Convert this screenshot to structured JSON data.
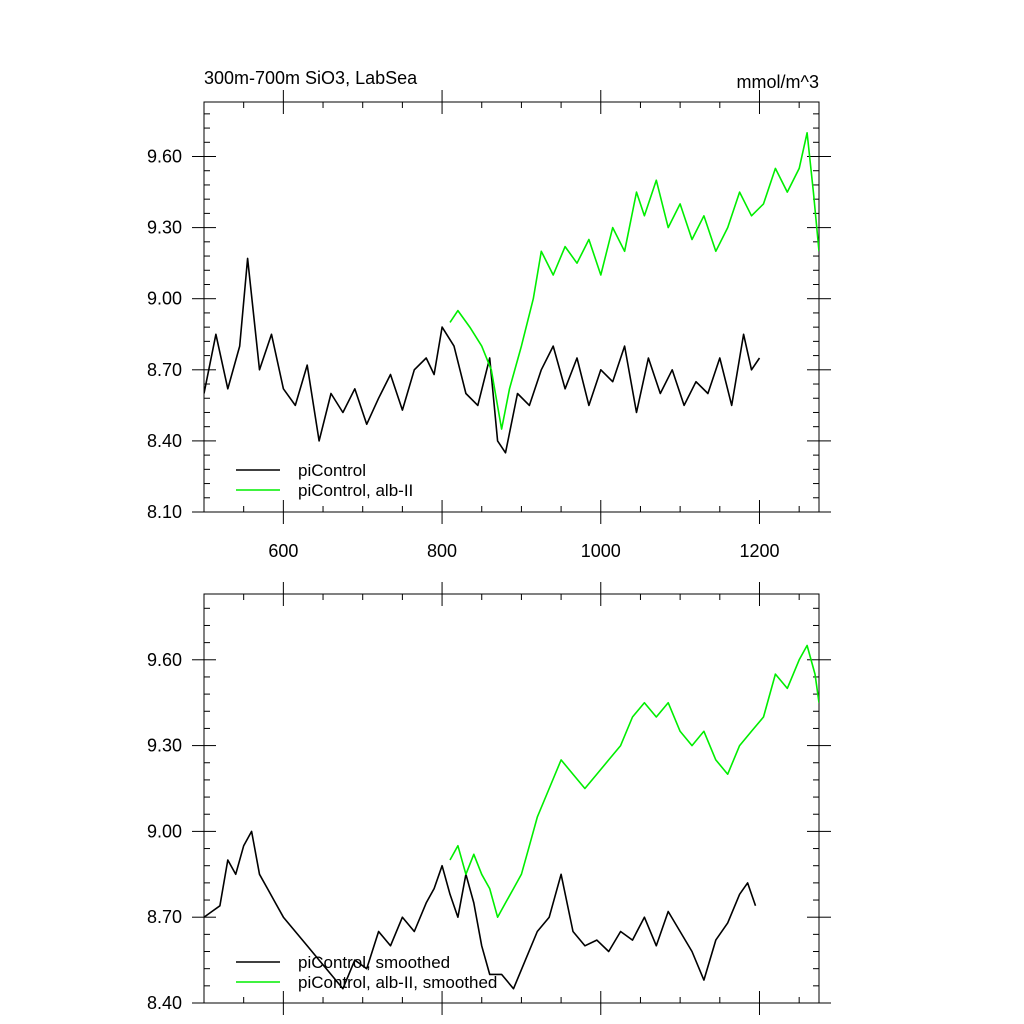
{
  "chart_data": [
    {
      "type": "line",
      "title": "300m-700m SiO3, LabSea",
      "units": "mmol/m^3",
      "xlim": [
        500,
        1275
      ],
      "ylim": [
        8.1,
        9.83
      ],
      "xticks": [
        600,
        800,
        1000,
        1200
      ],
      "xtick_labels": [
        "600",
        "800",
        "1000",
        "1200"
      ],
      "yticks": [
        8.1,
        8.4,
        8.7,
        9.0,
        9.3,
        9.6
      ],
      "ytick_labels": [
        "8.10",
        "8.40",
        "8.70",
        "9.00",
        "9.30",
        "9.60"
      ],
      "legend_position": "bottom-left",
      "series": [
        {
          "name": "piControl",
          "color": "#000000",
          "x": [
            500,
            515,
            530,
            545,
            555,
            570,
            585,
            600,
            615,
            630,
            645,
            660,
            675,
            690,
            705,
            720,
            735,
            750,
            765,
            780,
            790,
            800,
            815,
            830,
            845,
            860,
            870,
            880,
            895,
            910,
            925,
            940,
            955,
            970,
            985,
            1000,
            1015,
            1030,
            1045,
            1060,
            1075,
            1090,
            1105,
            1120,
            1135,
            1150,
            1165,
            1180,
            1190,
            1200
          ],
          "values": [
            8.6,
            8.85,
            8.62,
            8.8,
            9.17,
            8.7,
            8.85,
            8.62,
            8.55,
            8.72,
            8.4,
            8.6,
            8.52,
            8.62,
            8.47,
            8.58,
            8.68,
            8.53,
            8.7,
            8.75,
            8.68,
            8.88,
            8.8,
            8.6,
            8.55,
            8.75,
            8.4,
            8.35,
            8.6,
            8.55,
            8.7,
            8.8,
            8.62,
            8.75,
            8.55,
            8.7,
            8.65,
            8.8,
            8.52,
            8.75,
            8.6,
            8.7,
            8.55,
            8.65,
            8.6,
            8.75,
            8.55,
            8.85,
            8.7,
            8.75
          ]
        },
        {
          "name": "piControl, alb-II",
          "color": "#00ee00",
          "x": [
            810,
            820,
            835,
            850,
            862,
            875,
            885,
            900,
            915,
            925,
            940,
            955,
            970,
            985,
            1000,
            1015,
            1030,
            1045,
            1055,
            1070,
            1085,
            1100,
            1115,
            1130,
            1145,
            1160,
            1175,
            1190,
            1205,
            1220,
            1235,
            1250,
            1260,
            1268,
            1275
          ],
          "values": [
            8.9,
            8.95,
            8.88,
            8.8,
            8.7,
            8.45,
            8.62,
            8.8,
            9.0,
            9.2,
            9.1,
            9.22,
            9.15,
            9.25,
            9.1,
            9.3,
            9.2,
            9.45,
            9.35,
            9.5,
            9.3,
            9.4,
            9.25,
            9.35,
            9.2,
            9.3,
            9.45,
            9.35,
            9.4,
            9.55,
            9.45,
            9.55,
            9.7,
            9.45,
            9.2
          ]
        }
      ]
    },
    {
      "type": "line",
      "ylim": [
        8.4,
        9.83
      ],
      "yticks": [
        8.4,
        8.7,
        9.0,
        9.3,
        9.6
      ],
      "ytick_labels": [
        "8.40",
        "8.70",
        "9.00",
        "9.30",
        "9.60"
      ],
      "xlim": [
        500,
        1275
      ],
      "xticks": [
        600,
        800,
        1000,
        1200
      ],
      "legend_position": "bottom-left",
      "series": [
        {
          "name": "piControl, smoothed",
          "color": "#000000",
          "x": [
            500,
            510,
            520,
            530,
            540,
            550,
            560,
            570,
            580,
            590,
            600,
            615,
            630,
            645,
            660,
            675,
            690,
            705,
            720,
            735,
            750,
            765,
            780,
            790,
            800,
            810,
            820,
            830,
            840,
            850,
            860,
            875,
            890,
            905,
            920,
            935,
            950,
            965,
            980,
            995,
            1010,
            1025,
            1040,
            1055,
            1070,
            1085,
            1100,
            1115,
            1130,
            1145,
            1160,
            1175,
            1185,
            1195
          ],
          "values": [
            8.7,
            8.72,
            8.74,
            8.9,
            8.85,
            8.95,
            9.0,
            8.85,
            8.8,
            8.75,
            8.7,
            8.65,
            8.6,
            8.55,
            8.5,
            8.45,
            8.55,
            8.52,
            8.65,
            8.6,
            8.7,
            8.65,
            8.75,
            8.8,
            8.88,
            8.78,
            8.7,
            8.85,
            8.75,
            8.6,
            8.5,
            8.5,
            8.45,
            8.55,
            8.65,
            8.7,
            8.85,
            8.65,
            8.6,
            8.62,
            8.58,
            8.65,
            8.62,
            8.7,
            8.6,
            8.72,
            8.65,
            8.58,
            8.48,
            8.62,
            8.68,
            8.78,
            8.82,
            8.74
          ]
        },
        {
          "name": "piControl, alb-II, smoothed",
          "color": "#00ee00",
          "x": [
            810,
            820,
            830,
            840,
            850,
            860,
            870,
            880,
            890,
            900,
            910,
            920,
            935,
            950,
            965,
            980,
            995,
            1010,
            1025,
            1040,
            1055,
            1070,
            1085,
            1100,
            1115,
            1130,
            1145,
            1160,
            1175,
            1190,
            1205,
            1220,
            1235,
            1250,
            1260,
            1270,
            1275
          ],
          "values": [
            8.9,
            8.95,
            8.85,
            8.92,
            8.85,
            8.8,
            8.7,
            8.75,
            8.8,
            8.85,
            8.95,
            9.05,
            9.15,
            9.25,
            9.2,
            9.15,
            9.2,
            9.25,
            9.3,
            9.4,
            9.45,
            9.4,
            9.45,
            9.35,
            9.3,
            9.35,
            9.25,
            9.2,
            9.3,
            9.35,
            9.4,
            9.55,
            9.5,
            9.6,
            9.65,
            9.55,
            9.45
          ]
        }
      ]
    }
  ]
}
